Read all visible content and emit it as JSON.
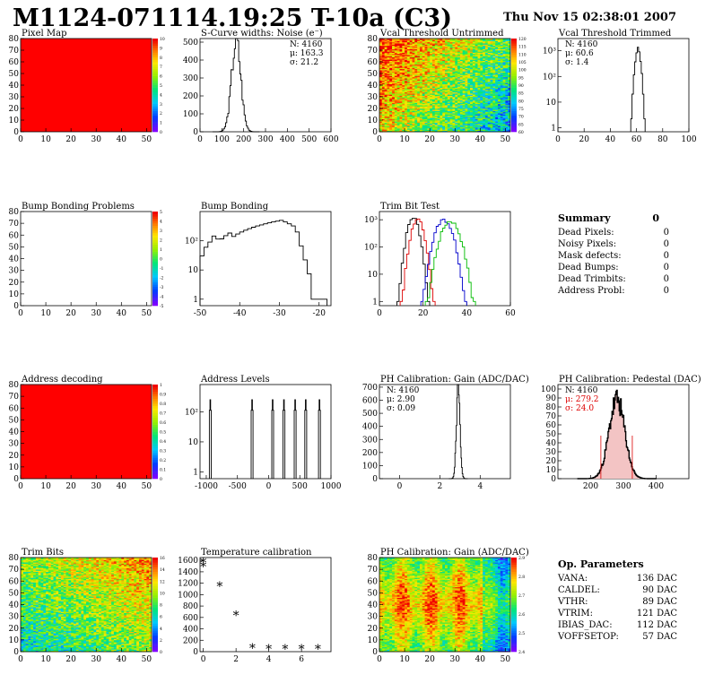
{
  "header": {
    "title": "M1124-071114.19:25 T-10a (C3)",
    "date": "Thu Nov 15 02:38:01 2007"
  },
  "summary": {
    "title": "Summary",
    "total": "0",
    "rows": [
      {
        "label": "Dead Pixels:",
        "value": "0"
      },
      {
        "label": "Noisy Pixels:",
        "value": "0"
      },
      {
        "label": "Mask defects:",
        "value": "0"
      },
      {
        "label": "Dead Bumps:",
        "value": "0"
      },
      {
        "label": "Dead Trimbits:",
        "value": "0"
      },
      {
        "label": "Address Probl:",
        "value": "0"
      }
    ]
  },
  "op_params": {
    "title": "Op. Parameters",
    "rows": [
      {
        "label": "VANA:",
        "value": "136 DAC"
      },
      {
        "label": "CALDEL:",
        "value": "90 DAC"
      },
      {
        "label": "VTHR:",
        "value": "89 DAC"
      },
      {
        "label": "VTRIM:",
        "value": "121 DAC"
      },
      {
        "label": "IBIAS_DAC:",
        "value": "112 DAC"
      },
      {
        "label": "VOFFSETOP:",
        "value": "57 DAC"
      }
    ]
  },
  "chart_data": [
    {
      "id": "pixel-map",
      "type": "heatmap",
      "title": "Pixel Map",
      "xlim": [
        0,
        52
      ],
      "ylim": [
        0,
        80
      ],
      "xticks": [
        0,
        10,
        20,
        30,
        40,
        50
      ],
      "yticks": [
        0,
        10,
        20,
        30,
        40,
        50,
        60,
        70,
        80
      ],
      "palette": "uniform-red",
      "zlim": [
        0,
        10
      ],
      "ztick_labels": [
        "0",
        "1",
        "2",
        "3",
        "4",
        "5",
        "6",
        "7",
        "8",
        "9",
        "10"
      ]
    },
    {
      "id": "noise",
      "type": "line",
      "title": "S-Curve widths: Noise (e⁻)",
      "xlim": [
        0,
        600
      ],
      "ylim": [
        0,
        520
      ],
      "xticks": [
        0,
        100,
        200,
        300,
        400,
        500,
        600
      ],
      "yticks": [
        0,
        100,
        200,
        300,
        400,
        500
      ],
      "stats": [
        "N: 4160",
        "μ: 163.3",
        "σ: 21.2"
      ],
      "stats_colors": [
        "#000",
        "#000",
        "#000"
      ],
      "series": [
        {
          "color": "#000",
          "shape": "gauss",
          "mu": 163.3,
          "sigma": 21.2,
          "peak": 510,
          "bin": 5,
          "seed": 3
        }
      ]
    },
    {
      "id": "vcal-untrimmed",
      "type": "heatmap",
      "title": "Vcal Threshold Untrimmed",
      "xlim": [
        0,
        52
      ],
      "ylim": [
        0,
        80
      ],
      "xticks": [
        0,
        10,
        20,
        30,
        40,
        50
      ],
      "yticks": [
        0,
        10,
        20,
        30,
        40,
        50,
        60,
        70,
        80
      ],
      "palette": "rainbow",
      "pattern": "diag",
      "zlim": [
        60,
        120
      ],
      "ztick_labels": [
        "60",
        "65",
        "70",
        "75",
        "80",
        "85",
        "90",
        "95",
        "100",
        "105",
        "110",
        "115",
        "120"
      ]
    },
    {
      "id": "vcal-trimmed",
      "type": "line",
      "title": "Vcal Threshold Trimmed",
      "xlim": [
        0,
        100
      ],
      "ylim": [
        0.7,
        3000
      ],
      "log": true,
      "xticks": [
        0,
        20,
        40,
        60,
        80,
        100
      ],
      "yticks": [
        1,
        10,
        100,
        1000
      ],
      "ytick_labels": [
        "1",
        "10",
        "10²",
        "10³"
      ],
      "stats": [
        "N: 4160",
        "μ: 60.6",
        "σ:  1.4"
      ],
      "stats_colors": [
        "#000",
        "#000",
        "#000"
      ],
      "series": [
        {
          "color": "#000",
          "shape": "gauss",
          "mu": 60.6,
          "sigma": 1.4,
          "peak": 1200,
          "bin": 1,
          "seed": 5
        }
      ]
    },
    {
      "id": "bump-problems",
      "type": "heatmap",
      "title": "Bump Bonding Problems",
      "xlim": [
        0,
        52
      ],
      "ylim": [
        0,
        80
      ],
      "xticks": [
        0,
        10,
        20,
        30,
        40,
        50
      ],
      "yticks": [
        0,
        10,
        20,
        30,
        40,
        50,
        60,
        70,
        80
      ],
      "palette": "empty",
      "zlim": [
        -5,
        5
      ],
      "ztick_labels": [
        "-5",
        "-4",
        "-3",
        "-2",
        "-1",
        "0",
        "1",
        "2",
        "3",
        "4",
        "5"
      ]
    },
    {
      "id": "bump-bonding",
      "type": "line",
      "title": "Bump Bonding",
      "xlim": [
        -50,
        -17
      ],
      "ylim": [
        0.6,
        1000
      ],
      "log": true,
      "xticks": [
        -50,
        -40,
        -30,
        -20
      ],
      "yticks": [
        1,
        10,
        100
      ],
      "ytick_labels": [
        "1",
        "10",
        "10²"
      ],
      "stats": [],
      "stats_colors": [],
      "series": [
        {
          "color": "#000",
          "shape": "bump",
          "bin": 1
        }
      ]
    },
    {
      "id": "trim-bit-test",
      "type": "line",
      "title": "Trim Bit Test",
      "xlim": [
        0,
        60
      ],
      "ylim": [
        0.7,
        2000
      ],
      "log": true,
      "xticks": [
        0,
        20,
        40,
        60
      ],
      "yticks": [
        1,
        10,
        100,
        1000
      ],
      "ytick_labels": [
        "1",
        "10",
        "10²",
        "10³"
      ],
      "stats": [],
      "stats_colors": [],
      "series": [
        {
          "color": "#000",
          "shape": "gauss",
          "mu": 15,
          "sigma": 1.8,
          "peak": 1200,
          "bin": 1,
          "seed": 7
        },
        {
          "color": "#d00",
          "shape": "gauss",
          "mu": 17,
          "sigma": 1.9,
          "peak": 1000,
          "bin": 1,
          "seed": 11
        },
        {
          "color": "#00c",
          "shape": "gauss",
          "mu": 29,
          "sigma": 2.6,
          "peak": 1000,
          "bin": 1,
          "seed": 13
        },
        {
          "color": "#0b0",
          "shape": "gauss",
          "mu": 32,
          "sigma": 2.8,
          "peak": 900,
          "bin": 1,
          "seed": 17
        }
      ]
    },
    {
      "id": "address-decoding",
      "type": "heatmap",
      "title": "Address decoding",
      "xlim": [
        0,
        52
      ],
      "ylim": [
        0,
        80
      ],
      "xticks": [
        0,
        10,
        20,
        30,
        40,
        50
      ],
      "yticks": [
        0,
        10,
        20,
        30,
        40,
        50,
        60,
        70,
        80
      ],
      "palette": "uniform-red",
      "zlim": [
        0,
        1
      ],
      "ztick_labels": [
        "0",
        "0.1",
        "0.2",
        "0.3",
        "0.4",
        "0.5",
        "0.6",
        "0.7",
        "0.8",
        "0.9",
        "1"
      ]
    },
    {
      "id": "address-levels",
      "type": "line",
      "title": "Address Levels",
      "xlim": [
        -1100,
        1000
      ],
      "ylim": [
        0.6,
        800
      ],
      "log": true,
      "xticks": [
        -1000,
        -500,
        0,
        500,
        1000
      ],
      "yticks": [
        1,
        10,
        100
      ],
      "ytick_labels": [
        "1",
        "10",
        "10²"
      ],
      "stats": [],
      "stats_colors": [],
      "series": [
        {
          "color": "#000",
          "shape": "spikes",
          "centers": [
            -940,
            -270,
            60,
            240,
            420,
            590,
            810
          ],
          "width": 18,
          "peak": 250
        }
      ]
    },
    {
      "id": "ph-gain",
      "type": "line",
      "title": "PH Calibration: Gain (ADC/DAC)",
      "xlim": [
        -1,
        5.5
      ],
      "ylim": [
        0,
        720
      ],
      "xticks": [
        0,
        2,
        4
      ],
      "yticks": [
        0,
        100,
        200,
        300,
        400,
        500,
        600,
        700
      ],
      "stats": [
        "N: 4160",
        "μ: 2.90",
        "σ: 0.09"
      ],
      "stats_colors": [
        "#000",
        "#000",
        "#000"
      ],
      "series": [
        {
          "color": "#000",
          "shape": "gauss",
          "mu": 2.9,
          "sigma": 0.09,
          "peak": 690,
          "bin": 0.03,
          "seed": 19
        }
      ]
    },
    {
      "id": "ph-pedestal",
      "type": "line",
      "title": "PH Calibration: Pedestal (DAC)",
      "xlim": [
        100,
        500
      ],
      "ylim": [
        0,
        105
      ],
      "xticks": [
        200,
        300,
        400
      ],
      "yticks": [
        0,
        10,
        20,
        30,
        40,
        50,
        60,
        70,
        80,
        90,
        100
      ],
      "stats": [
        "N: 4160",
        "μ: 279.2",
        "σ: 24.0"
      ],
      "stats_colors": [
        "#000",
        "#d00",
        "#d00"
      ],
      "series": [
        {
          "color": "#000",
          "shape": "gauss",
          "mu": 279.2,
          "sigma": 24,
          "peak": 88,
          "bin": 2,
          "seed": 23,
          "fill": true
        }
      ],
      "vlines": [
        {
          "x": 231.2,
          "h": 48
        },
        {
          "x": 327.2,
          "h": 48
        }
      ]
    },
    {
      "id": "trim-bits",
      "type": "heatmap",
      "title": "Trim Bits",
      "xlim": [
        0,
        52
      ],
      "ylim": [
        0,
        80
      ],
      "xticks": [
        0,
        10,
        20,
        30,
        40,
        50
      ],
      "yticks": [
        0,
        10,
        20,
        30,
        40,
        50,
        60,
        70,
        80
      ],
      "palette": "rainbow",
      "pattern": "diagT",
      "zlim": [
        0,
        16
      ],
      "ztick_labels": [
        "0",
        "2",
        "4",
        "6",
        "8",
        "10",
        "12",
        "14",
        "16"
      ]
    },
    {
      "id": "temperature",
      "type": "scatter",
      "title": "Temperature calibration",
      "xlim": [
        -0.2,
        7.8
      ],
      "ylim": [
        0,
        1650
      ],
      "xticks": [
        0,
        2,
        4,
        6
      ],
      "yticks": [
        0,
        200,
        400,
        600,
        800,
        1000,
        1200,
        1400,
        1600
      ],
      "stats": [],
      "stats_colors": [],
      "x": [
        0,
        0,
        1,
        2,
        3,
        4,
        5,
        6,
        7
      ],
      "y": [
        1560,
        1490,
        1150,
        640,
        60,
        45,
        45,
        45,
        50
      ]
    },
    {
      "id": "ph-gain-map",
      "type": "heatmap",
      "title": "PH Calibration: Gain (ADC/DAC)",
      "xlim": [
        0,
        52
      ],
      "ylim": [
        0,
        80
      ],
      "xticks": [
        0,
        10,
        20,
        30,
        40,
        50
      ],
      "yticks": [
        0,
        10,
        20,
        30,
        40,
        50,
        60,
        70,
        80
      ],
      "palette": "rainbow",
      "pattern": "gain",
      "zlim": [
        2.3,
        3.0
      ],
      "ztick_labels": [
        "2.4",
        "2.5",
        "2.6",
        "2.7",
        "2.8",
        "2.9"
      ]
    }
  ]
}
